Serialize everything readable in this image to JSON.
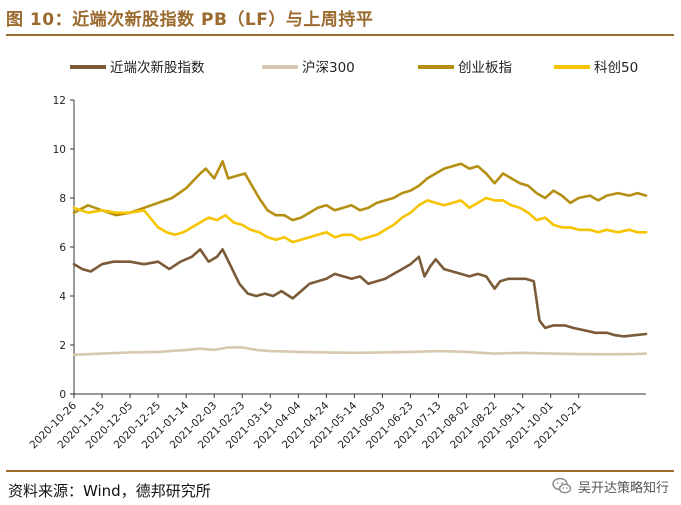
{
  "header": {
    "title": "图 10：近端次新股指数 PB（LF）与上周持平"
  },
  "footer": {
    "source": "资料来源：Wind，德邦研究所",
    "watermark": "吴开达策略知行",
    "watermark_icon": "wechat-icon"
  },
  "colors": {
    "accent": "#9b6a2e",
    "series": [
      "#7b5a38",
      "#d6c9b0",
      "#b58f12",
      "#f6c400"
    ]
  },
  "chart_data": {
    "type": "line",
    "title": "",
    "xlabel": "",
    "ylabel": "",
    "ylim": [
      0,
      12
    ],
    "yticks": [
      0,
      2,
      4,
      6,
      8,
      10,
      12
    ],
    "grid": false,
    "legend_position": "top",
    "x_ticks": [
      "2020-10-26",
      "2020-11-15",
      "2020-12-05",
      "2020-12-25",
      "2021-01-14",
      "2021-02-03",
      "2021-02-23",
      "2021-03-15",
      "2021-04-04",
      "2021-04-24",
      "2021-05-14",
      "2021-06-03",
      "2021-06-23",
      "2021-07-13",
      "2021-08-02",
      "2021-08-22",
      "2021-09-11",
      "2021-10-01",
      "2021-10-21"
    ],
    "series": [
      {
        "name": "近端次新股指数",
        "key": "near",
        "points": [
          [
            0,
            5.3
          ],
          [
            0.3,
            5.1
          ],
          [
            0.6,
            5.0
          ],
          [
            1,
            5.3
          ],
          [
            1.4,
            5.4
          ],
          [
            2,
            5.4
          ],
          [
            2.5,
            5.3
          ],
          [
            3,
            5.4
          ],
          [
            3.4,
            5.1
          ],
          [
            3.8,
            5.4
          ],
          [
            4.2,
            5.6
          ],
          [
            4.5,
            5.9
          ],
          [
            4.8,
            5.4
          ],
          [
            5.1,
            5.6
          ],
          [
            5.3,
            5.9
          ],
          [
            5.6,
            5.2
          ],
          [
            5.9,
            4.5
          ],
          [
            6.2,
            4.1
          ],
          [
            6.5,
            4.0
          ],
          [
            6.8,
            4.1
          ],
          [
            7.1,
            4.0
          ],
          [
            7.4,
            4.2
          ],
          [
            7.8,
            3.9
          ],
          [
            8.1,
            4.2
          ],
          [
            8.4,
            4.5
          ],
          [
            8.7,
            4.6
          ],
          [
            9.0,
            4.7
          ],
          [
            9.3,
            4.9
          ],
          [
            9.6,
            4.8
          ],
          [
            9.9,
            4.7
          ],
          [
            10.2,
            4.8
          ],
          [
            10.5,
            4.5
          ],
          [
            10.8,
            4.6
          ],
          [
            11.1,
            4.7
          ],
          [
            11.4,
            4.9
          ],
          [
            11.7,
            5.1
          ],
          [
            12.0,
            5.3
          ],
          [
            12.3,
            5.6
          ],
          [
            12.5,
            4.8
          ],
          [
            12.7,
            5.2
          ],
          [
            12.9,
            5.5
          ],
          [
            13.2,
            5.1
          ],
          [
            13.5,
            5.0
          ],
          [
            13.8,
            4.9
          ],
          [
            14.1,
            4.8
          ],
          [
            14.4,
            4.9
          ],
          [
            14.7,
            4.8
          ],
          [
            15.0,
            4.3
          ],
          [
            15.2,
            4.6
          ],
          [
            15.5,
            4.7
          ],
          [
            15.8,
            4.7
          ],
          [
            16.1,
            4.7
          ],
          [
            16.4,
            4.6
          ],
          [
            16.6,
            3.0
          ],
          [
            16.8,
            2.7
          ],
          [
            17.1,
            2.8
          ],
          [
            17.5,
            2.8
          ],
          [
            17.8,
            2.7
          ],
          [
            18.2,
            2.6
          ],
          [
            18.6,
            2.5
          ],
          [
            19.0,
            2.5
          ],
          [
            19.3,
            2.4
          ],
          [
            19.6,
            2.35
          ],
          [
            20.0,
            2.4
          ],
          [
            20.4,
            2.45
          ]
        ]
      },
      {
        "name": "沪深300",
        "key": "hs300",
        "points": [
          [
            0,
            1.6
          ],
          [
            1,
            1.65
          ],
          [
            2,
            1.7
          ],
          [
            3,
            1.72
          ],
          [
            4,
            1.8
          ],
          [
            4.5,
            1.85
          ],
          [
            5,
            1.8
          ],
          [
            5.5,
            1.9
          ],
          [
            6,
            1.9
          ],
          [
            6.5,
            1.8
          ],
          [
            7,
            1.75
          ],
          [
            8,
            1.72
          ],
          [
            9,
            1.7
          ],
          [
            10,
            1.68
          ],
          [
            11,
            1.7
          ],
          [
            12,
            1.72
          ],
          [
            13,
            1.75
          ],
          [
            14,
            1.72
          ],
          [
            15,
            1.65
          ],
          [
            16,
            1.68
          ],
          [
            17,
            1.65
          ],
          [
            18,
            1.63
          ],
          [
            19,
            1.62
          ],
          [
            20,
            1.63
          ],
          [
            20.4,
            1.65
          ]
        ]
      },
      {
        "name": "创业板指",
        "key": "gem",
        "points": [
          [
            0,
            7.4
          ],
          [
            0.5,
            7.7
          ],
          [
            1,
            7.5
          ],
          [
            1.5,
            7.3
          ],
          [
            2,
            7.4
          ],
          [
            2.5,
            7.6
          ],
          [
            3,
            7.8
          ],
          [
            3.5,
            8.0
          ],
          [
            4,
            8.4
          ],
          [
            4.5,
            9.0
          ],
          [
            4.7,
            9.2
          ],
          [
            5.0,
            8.8
          ],
          [
            5.3,
            9.5
          ],
          [
            5.5,
            8.8
          ],
          [
            5.8,
            8.9
          ],
          [
            6.1,
            9.0
          ],
          [
            6.3,
            8.6
          ],
          [
            6.6,
            8.0
          ],
          [
            6.9,
            7.5
          ],
          [
            7.2,
            7.3
          ],
          [
            7.5,
            7.3
          ],
          [
            7.8,
            7.1
          ],
          [
            8.1,
            7.2
          ],
          [
            8.4,
            7.4
          ],
          [
            8.7,
            7.6
          ],
          [
            9.0,
            7.7
          ],
          [
            9.3,
            7.5
          ],
          [
            9.6,
            7.6
          ],
          [
            9.9,
            7.7
          ],
          [
            10.2,
            7.5
          ],
          [
            10.5,
            7.6
          ],
          [
            10.8,
            7.8
          ],
          [
            11.1,
            7.9
          ],
          [
            11.4,
            8.0
          ],
          [
            11.7,
            8.2
          ],
          [
            12.0,
            8.3
          ],
          [
            12.3,
            8.5
          ],
          [
            12.6,
            8.8
          ],
          [
            12.9,
            9.0
          ],
          [
            13.2,
            9.2
          ],
          [
            13.5,
            9.3
          ],
          [
            13.8,
            9.4
          ],
          [
            14.1,
            9.2
          ],
          [
            14.4,
            9.3
          ],
          [
            14.7,
            9.0
          ],
          [
            15.0,
            8.6
          ],
          [
            15.3,
            9.0
          ],
          [
            15.6,
            8.8
          ],
          [
            15.9,
            8.6
          ],
          [
            16.2,
            8.5
          ],
          [
            16.5,
            8.2
          ],
          [
            16.8,
            8.0
          ],
          [
            17.1,
            8.3
          ],
          [
            17.4,
            8.1
          ],
          [
            17.7,
            7.8
          ],
          [
            18.0,
            8.0
          ],
          [
            18.4,
            8.1
          ],
          [
            18.7,
            7.9
          ],
          [
            19.0,
            8.1
          ],
          [
            19.4,
            8.2
          ],
          [
            19.8,
            8.1
          ],
          [
            20.1,
            8.2
          ],
          [
            20.4,
            8.1
          ]
        ]
      },
      {
        "name": "科创50",
        "key": "star",
        "points": [
          [
            0,
            7.6
          ],
          [
            0.5,
            7.4
          ],
          [
            1,
            7.5
          ],
          [
            1.5,
            7.4
          ],
          [
            2,
            7.4
          ],
          [
            2.5,
            7.5
          ],
          [
            3,
            6.8
          ],
          [
            3.3,
            6.6
          ],
          [
            3.6,
            6.5
          ],
          [
            3.9,
            6.6
          ],
          [
            4.2,
            6.8
          ],
          [
            4.5,
            7.0
          ],
          [
            4.8,
            7.2
          ],
          [
            5.1,
            7.1
          ],
          [
            5.4,
            7.3
          ],
          [
            5.7,
            7.0
          ],
          [
            6.0,
            6.9
          ],
          [
            6.3,
            6.7
          ],
          [
            6.6,
            6.6
          ],
          [
            6.9,
            6.4
          ],
          [
            7.2,
            6.3
          ],
          [
            7.5,
            6.4
          ],
          [
            7.8,
            6.2
          ],
          [
            8.1,
            6.3
          ],
          [
            8.4,
            6.4
          ],
          [
            8.7,
            6.5
          ],
          [
            9.0,
            6.6
          ],
          [
            9.3,
            6.4
          ],
          [
            9.6,
            6.5
          ],
          [
            9.9,
            6.5
          ],
          [
            10.2,
            6.3
          ],
          [
            10.5,
            6.4
          ],
          [
            10.8,
            6.5
          ],
          [
            11.1,
            6.7
          ],
          [
            11.4,
            6.9
          ],
          [
            11.7,
            7.2
          ],
          [
            12.0,
            7.4
          ],
          [
            12.3,
            7.7
          ],
          [
            12.6,
            7.9
          ],
          [
            12.9,
            7.8
          ],
          [
            13.2,
            7.7
          ],
          [
            13.5,
            7.8
          ],
          [
            13.8,
            7.9
          ],
          [
            14.1,
            7.6
          ],
          [
            14.4,
            7.8
          ],
          [
            14.7,
            8.0
          ],
          [
            15.0,
            7.9
          ],
          [
            15.3,
            7.9
          ],
          [
            15.6,
            7.7
          ],
          [
            15.9,
            7.6
          ],
          [
            16.2,
            7.4
          ],
          [
            16.5,
            7.1
          ],
          [
            16.8,
            7.2
          ],
          [
            17.1,
            6.9
          ],
          [
            17.4,
            6.8
          ],
          [
            17.7,
            6.8
          ],
          [
            18.0,
            6.7
          ],
          [
            18.4,
            6.7
          ],
          [
            18.7,
            6.6
          ],
          [
            19.0,
            6.7
          ],
          [
            19.4,
            6.6
          ],
          [
            19.8,
            6.7
          ],
          [
            20.1,
            6.6
          ],
          [
            20.4,
            6.6
          ]
        ]
      }
    ]
  }
}
